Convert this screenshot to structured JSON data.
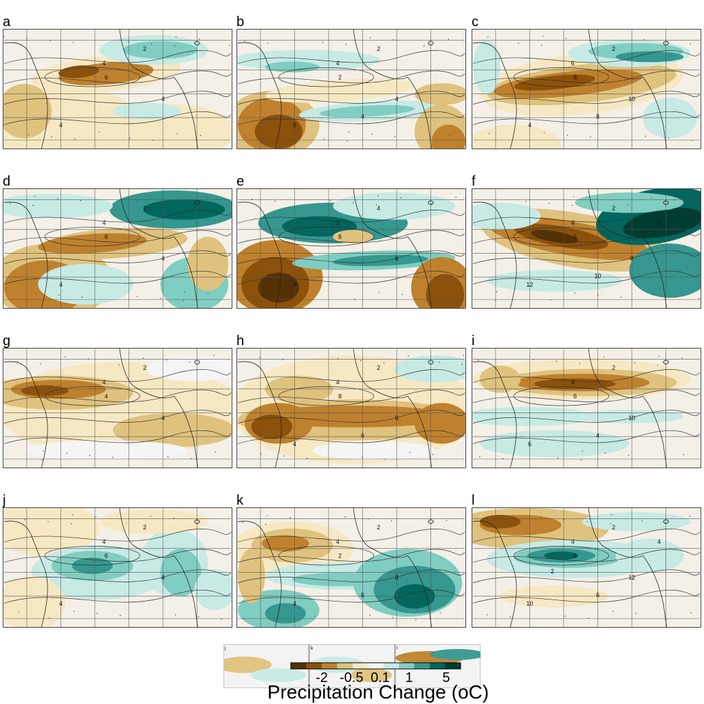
{
  "chart_data": {
    "type": "heatmap",
    "title": "",
    "colorbar": {
      "label": "Precipitation Change (oC)",
      "tick_labels": [
        "-2",
        "-0.5",
        "0.1",
        "1",
        "5"
      ],
      "colors": [
        "#543005",
        "#8c510a",
        "#bf812d",
        "#dfc27d",
        "#f6e8c3",
        "#f5f5f5",
        "#c7eae5",
        "#80cdc1",
        "#35978f",
        "#01665e",
        "#003c30"
      ]
    },
    "panels": [
      {
        "letter": "a",
        "contour_labels": [
          "2",
          "4",
          "6",
          "4",
          "4"
        ],
        "pattern": "dry-band"
      },
      {
        "letter": "b",
        "contour_labels": [
          "2",
          "4",
          "2",
          "4",
          "8",
          "4"
        ],
        "pattern": "dry-southwest"
      },
      {
        "letter": "c",
        "contour_labels": [
          "2",
          "6",
          "8",
          "10",
          "4",
          "8"
        ],
        "pattern": "strong-dry-band"
      },
      {
        "letter": "d",
        "contour_labels": [
          "2",
          "4",
          "6",
          "4",
          "4"
        ],
        "pattern": "dry-band-wet-north"
      },
      {
        "letter": "e",
        "contour_labels": [
          "4",
          "2",
          "8",
          "6",
          "4"
        ],
        "pattern": "dry-southwest-wet-band"
      },
      {
        "letter": "f",
        "contour_labels": [
          "2",
          "4",
          "6",
          "8",
          "12",
          "10",
          "6"
        ],
        "pattern": "strong-dry-wet-north"
      },
      {
        "letter": "g",
        "contour_labels": [
          "2",
          "4",
          "4",
          "4"
        ],
        "pattern": "broad-dry"
      },
      {
        "letter": "h",
        "contour_labels": [
          "2",
          "4",
          "8",
          "6",
          "4",
          "6"
        ],
        "pattern": "broad-dry-strong"
      },
      {
        "letter": "i",
        "contour_labels": [
          "2",
          "4",
          "6",
          "10",
          "6",
          "4"
        ],
        "pattern": "dry-north-band"
      },
      {
        "letter": "j",
        "contour_labels": [
          "2",
          "4",
          "6",
          "4",
          "4"
        ],
        "pattern": "wet-center"
      },
      {
        "letter": "k",
        "contour_labels": [
          "2",
          "4",
          "2",
          "8",
          "4",
          "6"
        ],
        "pattern": "wet-southeast"
      },
      {
        "letter": "l",
        "contour_labels": [
          "2",
          "4",
          "6",
          "12",
          "10",
          "6",
          "4",
          "2"
        ],
        "pattern": "wet-band-dry-north"
      }
    ]
  }
}
